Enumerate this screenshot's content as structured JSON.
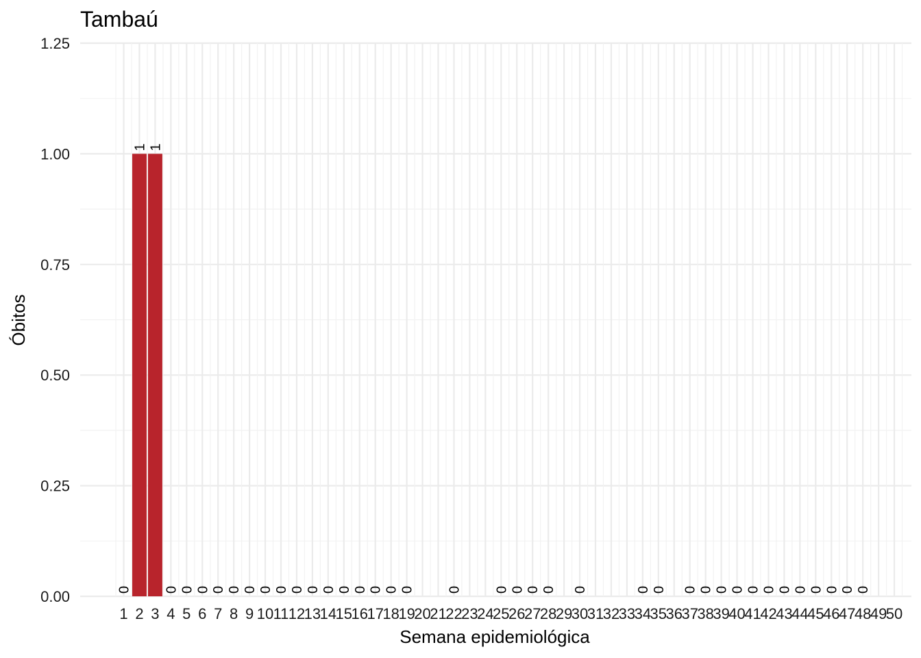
{
  "chart_data": {
    "type": "bar",
    "title": "Tambaú",
    "xlabel": "Semana epidemiológica",
    "ylabel": "Óbitos",
    "ylim": [
      0,
      1.25
    ],
    "yticks": [
      "0.00",
      "0.25",
      "0.50",
      "0.75",
      "1.00",
      "1.25"
    ],
    "grid": true,
    "legend": "none",
    "bar_color": "#B8242C",
    "categories": [
      "1",
      "2",
      "3",
      "4",
      "5",
      "6",
      "7",
      "8",
      "9",
      "10",
      "11",
      "12",
      "13",
      "14",
      "15",
      "16",
      "17",
      "18",
      "19",
      "20",
      "21",
      "22",
      "23",
      "24",
      "25",
      "26",
      "27",
      "28",
      "29",
      "30",
      "31",
      "32",
      "33",
      "34",
      "35",
      "36",
      "37",
      "38",
      "39",
      "40",
      "41",
      "42",
      "43",
      "44",
      "45",
      "46",
      "47",
      "48",
      "49",
      "50"
    ],
    "values": [
      0,
      1,
      1,
      0,
      0,
      0,
      0,
      0,
      0,
      0,
      0,
      0,
      0,
      0,
      0,
      0,
      0,
      0,
      0,
      null,
      null,
      0,
      null,
      null,
      0,
      0,
      0,
      0,
      null,
      0,
      null,
      null,
      null,
      0,
      0,
      null,
      0,
      0,
      0,
      0,
      0,
      0,
      0,
      0,
      0,
      0,
      0,
      0,
      null,
      null
    ]
  }
}
